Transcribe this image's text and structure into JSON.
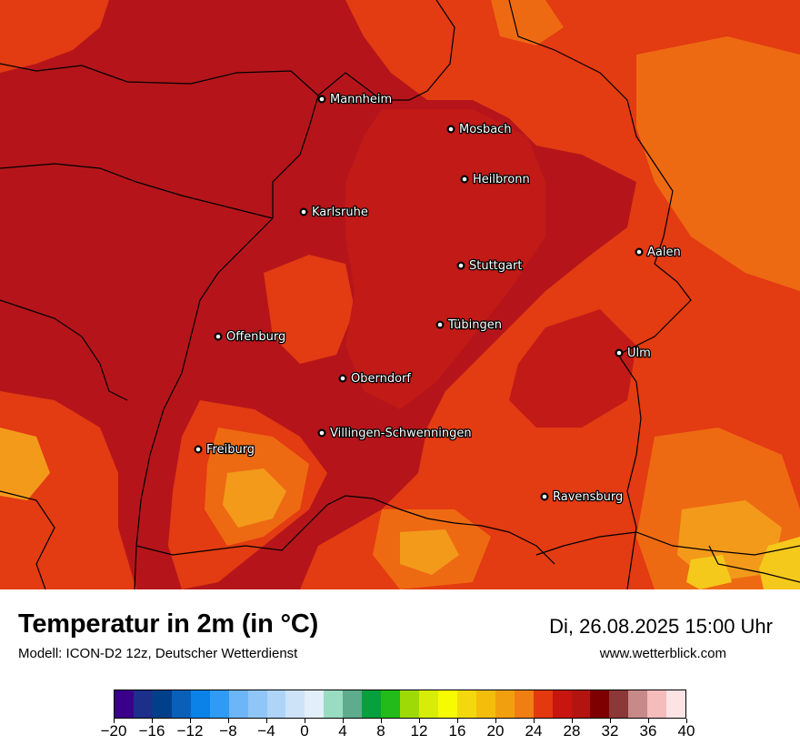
{
  "map": {
    "colors": {
      "background": "#b5151a",
      "warm_dark": "#c11a17",
      "orange_red": "#e33b12",
      "orange": "#ee6a12",
      "light_orange": "#f39a1b",
      "yellow": "#f5c81c",
      "border": "#000000"
    },
    "cities": [
      {
        "name": "Mannheim"
      },
      {
        "name": "Mosbach"
      },
      {
        "name": "Heilbronn"
      },
      {
        "name": "Karlsruhe"
      },
      {
        "name": "Aalen"
      },
      {
        "name": "Stuttgart"
      },
      {
        "name": "Tübingen"
      },
      {
        "name": "Offenburg"
      },
      {
        "name": "Ulm"
      },
      {
        "name": "Oberndorf"
      },
      {
        "name": "Villingen-Schwenningen"
      },
      {
        "name": "Freiburg"
      },
      {
        "name": "Ravensburg"
      }
    ]
  },
  "footer": {
    "title": "Temperatur in 2m (in °C)",
    "model": "Modell: ICON-D2 12z, Deutscher Wetterdienst",
    "datetime": "Di, 26.08.2025 15:00 Uhr",
    "website": "www.wetterblick.com"
  },
  "legend": {
    "min": -20,
    "max": 40,
    "colors": [
      "#3a008a",
      "#1c2f8a",
      "#00408a",
      "#0a5fb8",
      "#0a82e8",
      "#2f9bf5",
      "#6cb6f7",
      "#8fc6f7",
      "#aed4f8",
      "#cde3f8",
      "#e2eefa",
      "#99dcc2",
      "#5eac8d",
      "#06a03c",
      "#22bb19",
      "#9edb06",
      "#d7ec06",
      "#f6fb02",
      "#f2d80c",
      "#f4bd0c",
      "#f29f0f",
      "#f07e13",
      "#e4390f",
      "#c8150f",
      "#b3140f",
      "#7e0000",
      "#8c3838",
      "#c78a88",
      "#f4bcbb",
      "#fde3e3"
    ],
    "ticks": [
      "−20",
      "−16",
      "−12",
      "−8",
      "−4",
      "0",
      "4",
      "8",
      "12",
      "16",
      "20",
      "24",
      "28",
      "32",
      "36",
      "40"
    ]
  }
}
